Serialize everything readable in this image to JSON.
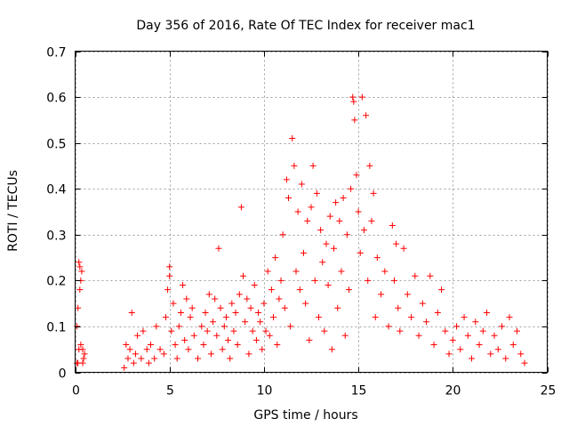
{
  "chart_data": {
    "type": "scatter",
    "title": "Day 356 of 2016, Rate Of TEC Index for receiver mac1",
    "xlabel": "GPS time / hours",
    "ylabel": "ROTI / TECUs",
    "xlim": [
      0,
      25
    ],
    "ylim": [
      0,
      0.7
    ],
    "xticks": [
      "0",
      "5",
      "10",
      "15",
      "20",
      "25"
    ],
    "yticks": [
      "0",
      "0.1",
      "0.2",
      "0.3",
      "0.4",
      "0.5",
      "0.6",
      "0.7"
    ],
    "grid": true,
    "marker": "+",
    "marker_color": "#ff0000",
    "series": [
      {
        "name": "ROTI",
        "points": [
          [
            0.1,
            0.02
          ],
          [
            0.1,
            0.1
          ],
          [
            0.15,
            0.14
          ],
          [
            0.2,
            0.24
          ],
          [
            0.25,
            0.23
          ],
          [
            0.25,
            0.18
          ],
          [
            0.3,
            0.2
          ],
          [
            0.35,
            0.22
          ],
          [
            0.4,
            0.05
          ],
          [
            0.45,
            0.03
          ],
          [
            0.5,
            0.04
          ],
          [
            0.2,
            0.05
          ],
          [
            0.3,
            0.06
          ],
          [
            0.4,
            0.02
          ],
          [
            0.15,
            0.02
          ],
          [
            2.6,
            0.01
          ],
          [
            2.7,
            0.06
          ],
          [
            2.8,
            0.03
          ],
          [
            2.9,
            0.05
          ],
          [
            3.0,
            0.13
          ],
          [
            3.1,
            0.02
          ],
          [
            3.2,
            0.04
          ],
          [
            3.3,
            0.08
          ],
          [
            3.5,
            0.03
          ],
          [
            3.6,
            0.09
          ],
          [
            3.8,
            0.05
          ],
          [
            3.9,
            0.02
          ],
          [
            4.0,
            0.06
          ],
          [
            4.2,
            0.03
          ],
          [
            4.3,
            0.1
          ],
          [
            4.5,
            0.05
          ],
          [
            4.7,
            0.04
          ],
          [
            4.8,
            0.12
          ],
          [
            4.9,
            0.18
          ],
          [
            5.0,
            0.23
          ],
          [
            5.0,
            0.21
          ],
          [
            5.1,
            0.09
          ],
          [
            5.2,
            0.15
          ],
          [
            5.3,
            0.06
          ],
          [
            5.4,
            0.03
          ],
          [
            5.5,
            0.1
          ],
          [
            5.6,
            0.13
          ],
          [
            5.7,
            0.19
          ],
          [
            5.8,
            0.07
          ],
          [
            5.9,
            0.16
          ],
          [
            6.0,
            0.05
          ],
          [
            6.1,
            0.12
          ],
          [
            6.2,
            0.14
          ],
          [
            6.3,
            0.08
          ],
          [
            6.5,
            0.03
          ],
          [
            6.7,
            0.1
          ],
          [
            6.8,
            0.06
          ],
          [
            6.9,
            0.13
          ],
          [
            7.0,
            0.09
          ],
          [
            7.1,
            0.17
          ],
          [
            7.2,
            0.04
          ],
          [
            7.3,
            0.11
          ],
          [
            7.4,
            0.16
          ],
          [
            7.5,
            0.08
          ],
          [
            7.6,
            0.27
          ],
          [
            7.7,
            0.14
          ],
          [
            7.8,
            0.05
          ],
          [
            7.9,
            0.1
          ],
          [
            8.0,
            0.12
          ],
          [
            8.1,
            0.07
          ],
          [
            8.2,
            0.03
          ],
          [
            8.3,
            0.15
          ],
          [
            8.4,
            0.09
          ],
          [
            8.5,
            0.13
          ],
          [
            8.6,
            0.06
          ],
          [
            8.7,
            0.17
          ],
          [
            8.8,
            0.36
          ],
          [
            8.9,
            0.21
          ],
          [
            9.0,
            0.11
          ],
          [
            9.1,
            0.16
          ],
          [
            9.2,
            0.04
          ],
          [
            9.3,
            0.14
          ],
          [
            9.4,
            0.09
          ],
          [
            9.5,
            0.19
          ],
          [
            9.6,
            0.07
          ],
          [
            9.7,
            0.13
          ],
          [
            9.8,
            0.11
          ],
          [
            9.9,
            0.05
          ],
          [
            10.0,
            0.15
          ],
          [
            10.1,
            0.09
          ],
          [
            10.2,
            0.22
          ],
          [
            10.3,
            0.08
          ],
          [
            10.4,
            0.18
          ],
          [
            10.5,
            0.12
          ],
          [
            10.6,
            0.25
          ],
          [
            10.7,
            0.06
          ],
          [
            10.8,
            0.16
          ],
          [
            10.9,
            0.2
          ],
          [
            11.0,
            0.3
          ],
          [
            11.1,
            0.14
          ],
          [
            11.2,
            0.42
          ],
          [
            11.3,
            0.38
          ],
          [
            11.4,
            0.1
          ],
          [
            11.5,
            0.51
          ],
          [
            11.6,
            0.45
          ],
          [
            11.7,
            0.22
          ],
          [
            11.8,
            0.35
          ],
          [
            11.9,
            0.18
          ],
          [
            12.0,
            0.41
          ],
          [
            12.1,
            0.26
          ],
          [
            12.2,
            0.15
          ],
          [
            12.3,
            0.33
          ],
          [
            12.4,
            0.07
          ],
          [
            12.5,
            0.36
          ],
          [
            12.6,
            0.45
          ],
          [
            12.7,
            0.2
          ],
          [
            12.8,
            0.39
          ],
          [
            12.9,
            0.12
          ],
          [
            13.0,
            0.31
          ],
          [
            13.1,
            0.24
          ],
          [
            13.2,
            0.09
          ],
          [
            13.3,
            0.28
          ],
          [
            13.4,
            0.19
          ],
          [
            13.5,
            0.34
          ],
          [
            13.6,
            0.05
          ],
          [
            13.7,
            0.27
          ],
          [
            13.8,
            0.37
          ],
          [
            13.9,
            0.14
          ],
          [
            14.0,
            0.33
          ],
          [
            14.1,
            0.22
          ],
          [
            14.2,
            0.38
          ],
          [
            14.3,
            0.08
          ],
          [
            14.4,
            0.3
          ],
          [
            14.5,
            0.18
          ],
          [
            14.6,
            0.4
          ],
          [
            14.7,
            0.6
          ],
          [
            14.75,
            0.59
          ],
          [
            14.8,
            0.55
          ],
          [
            14.9,
            0.43
          ],
          [
            15.0,
            0.35
          ],
          [
            15.1,
            0.26
          ],
          [
            15.2,
            0.6
          ],
          [
            15.3,
            0.31
          ],
          [
            15.4,
            0.56
          ],
          [
            15.5,
            0.2
          ],
          [
            15.6,
            0.45
          ],
          [
            15.7,
            0.33
          ],
          [
            15.8,
            0.39
          ],
          [
            15.9,
            0.12
          ],
          [
            16.0,
            0.25
          ],
          [
            16.2,
            0.17
          ],
          [
            16.4,
            0.22
          ],
          [
            16.6,
            0.1
          ],
          [
            16.8,
            0.32
          ],
          [
            16.9,
            0.2
          ],
          [
            17.0,
            0.28
          ],
          [
            17.1,
            0.14
          ],
          [
            17.2,
            0.09
          ],
          [
            17.4,
            0.27
          ],
          [
            17.6,
            0.17
          ],
          [
            17.8,
            0.12
          ],
          [
            18.0,
            0.21
          ],
          [
            18.2,
            0.08
          ],
          [
            18.4,
            0.15
          ],
          [
            18.6,
            0.11
          ],
          [
            18.8,
            0.21
          ],
          [
            19.0,
            0.06
          ],
          [
            19.2,
            0.13
          ],
          [
            19.4,
            0.18
          ],
          [
            19.6,
            0.09
          ],
          [
            19.8,
            0.04
          ],
          [
            20.0,
            0.07
          ],
          [
            20.2,
            0.1
          ],
          [
            20.4,
            0.05
          ],
          [
            20.6,
            0.12
          ],
          [
            20.8,
            0.08
          ],
          [
            21.0,
            0.03
          ],
          [
            21.2,
            0.11
          ],
          [
            21.4,
            0.06
          ],
          [
            21.6,
            0.09
          ],
          [
            21.8,
            0.13
          ],
          [
            22.0,
            0.04
          ],
          [
            22.2,
            0.08
          ],
          [
            22.4,
            0.05
          ],
          [
            22.6,
            0.1
          ],
          [
            22.8,
            0.03
          ],
          [
            23.0,
            0.12
          ],
          [
            23.2,
            0.06
          ],
          [
            23.4,
            0.09
          ],
          [
            23.6,
            0.04
          ],
          [
            23.8,
            0.02
          ]
        ]
      }
    ]
  }
}
